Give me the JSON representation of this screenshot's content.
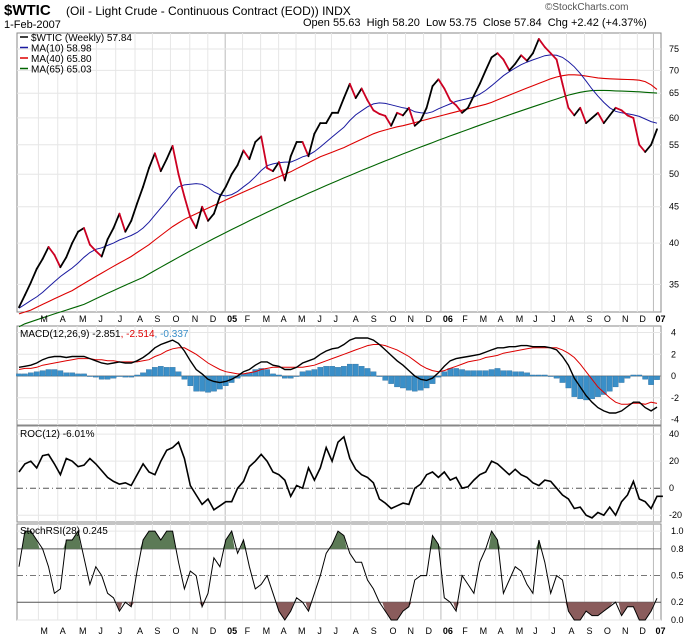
{
  "header": {
    "symbol": "$WTIC",
    "name": "(Oil - Light Crude - Continuous Contract (EOD)) INDX",
    "date": "1-Feb-2007",
    "open_label": "Open",
    "open": "55.63",
    "high_label": "High",
    "high": "58.20",
    "low_label": "Low",
    "low": "53.75",
    "close_label": "Close",
    "close": "57.84",
    "chg_label": "Chg",
    "chg": "+2.42 (+4.37%)",
    "watermark": "©StockCharts.com"
  },
  "colors": {
    "price": "#000000",
    "price_down": "#cc0022",
    "ma10": "#1a1aa0",
    "ma40": "#dd0000",
    "ma65": "#006400",
    "macd": "#000000",
    "signal": "#dd0000",
    "hist": "#3a8fc8",
    "roc": "#000000",
    "stoch": "#000000",
    "stoch_hi": "#5c7a56",
    "stoch_lo": "#8a5c5c"
  },
  "chart_data": {
    "type": "line",
    "x_labels": [
      "M",
      "A",
      "M",
      "J",
      "J",
      "A",
      "S",
      "O",
      "N",
      "D",
      "05",
      "F",
      "M",
      "A",
      "M",
      "J",
      "J",
      "A",
      "S",
      "O",
      "N",
      "D",
      "06",
      "F",
      "M",
      "A",
      "M",
      "J",
      "J",
      "A",
      "S",
      "O",
      "N",
      "D",
      "07"
    ],
    "price_panel": {
      "legend": [
        {
          "label": "$WTIC (Weekly) 57.84",
          "color_key": "price"
        },
        {
          "label": "MA(10) 58.98",
          "color_key": "ma10"
        },
        {
          "label": "MA(40) 65.80",
          "color_key": "ma40"
        },
        {
          "label": "MA(65) 65.03",
          "color_key": "ma65"
        }
      ],
      "yticks": [
        35,
        40,
        45,
        50,
        55,
        60,
        65,
        70,
        75
      ],
      "ylim": [
        32,
        79
      ],
      "scale": "log",
      "series": {
        "price": [
          32.5,
          33.8,
          35.2,
          36.8,
          38,
          39.5,
          38.5,
          37,
          38.2,
          40,
          41.5,
          42,
          39.8,
          39,
          38.3,
          40.5,
          42,
          44,
          41.5,
          43,
          45.5,
          48,
          51,
          53.5,
          50.5,
          52.5,
          54.8,
          50,
          46.5,
          43.5,
          42,
          45,
          43,
          44,
          46.5,
          48,
          50,
          51.5,
          54,
          52.5,
          55.5,
          56.5,
          51,
          50.5,
          52,
          49,
          53,
          55.5,
          55.5,
          53,
          57,
          59,
          59,
          61,
          61,
          64,
          67,
          64,
          66,
          63.5,
          61.5,
          60.8,
          60.4,
          58.5,
          61,
          60.5,
          62,
          58.5,
          59.5,
          62,
          66.5,
          68,
          66,
          63.5,
          62.5,
          61,
          62,
          64.5,
          67,
          70,
          73,
          74,
          72.5,
          70,
          71.5,
          73.5,
          72.2,
          74,
          77.5,
          75.5,
          74,
          72.5,
          67,
          62,
          60.5,
          62,
          59,
          60,
          61,
          59,
          60.5,
          62,
          61.5,
          60.5,
          60,
          55,
          53.75,
          55,
          57.84
        ],
        "ma10": [
          32.4,
          32.8,
          33.2,
          33.6,
          34.1,
          34.7,
          35.3,
          35.9,
          36.4,
          36.9,
          37.5,
          38.2,
          38.8,
          39.2,
          39.4,
          39.7,
          40,
          40.4,
          40.7,
          41,
          41.4,
          42,
          42.8,
          43.8,
          44.8,
          45.8,
          47,
          48,
          48.3,
          48.4,
          48.5,
          48.4,
          47.9,
          47.2,
          46.8,
          46.6,
          46.8,
          47.3,
          48,
          48.7,
          49.6,
          50.6,
          51.4,
          51.7,
          51.9,
          52,
          52,
          52.4,
          52.9,
          53.2,
          53.8,
          54.6,
          55.5,
          56.4,
          57.3,
          58.2,
          59.5,
          60.6,
          61.4,
          62.2,
          62.8,
          63,
          62.9,
          62.6,
          62.3,
          62,
          61.8,
          61.2,
          61,
          60.9,
          61.2,
          61.8,
          62.3,
          62.8,
          63.3,
          63.6,
          63.9,
          64.2,
          64.8,
          65.6,
          66.6,
          67.7,
          68.8,
          69.7,
          70.5,
          71.3,
          71.9,
          72.4,
          72.9,
          73.4,
          73.6,
          73.5,
          73,
          72,
          70.8,
          69.3,
          67.6,
          65.9,
          64.4,
          63.1,
          62,
          61.3,
          61,
          60.8,
          60.6,
          60.3,
          59.8,
          59.3,
          58.98
        ],
        "ma40": [
          31.8,
          32,
          32.2,
          32.5,
          32.8,
          33.1,
          33.4,
          33.7,
          34,
          34.3,
          34.7,
          35.1,
          35.5,
          35.9,
          36.3,
          36.7,
          37.1,
          37.5,
          37.9,
          38.3,
          38.8,
          39.3,
          39.8,
          40.4,
          41,
          41.6,
          42.2,
          42.7,
          43.2,
          43.6,
          44,
          44.4,
          44.8,
          45.2,
          45.6,
          46,
          46.4,
          46.8,
          47.2,
          47.6,
          48,
          48.4,
          48.8,
          49.2,
          49.6,
          50,
          50.4,
          50.9,
          51.4,
          51.9,
          52.4,
          52.9,
          53.3,
          53.7,
          54.1,
          54.5,
          55,
          55.5,
          56,
          56.5,
          57,
          57.4,
          57.7,
          58,
          58.3,
          58.5,
          58.8,
          59.1,
          59.4,
          59.7,
          60,
          60.3,
          60.6,
          60.9,
          61.2,
          61.5,
          61.8,
          62.1,
          62.4,
          62.7,
          63.1,
          63.6,
          64.1,
          64.6,
          65.1,
          65.6,
          66.1,
          66.6,
          67.1,
          67.6,
          68.1,
          68.5,
          68.8,
          69,
          69,
          68.9,
          68.7,
          68.5,
          68.3,
          68.2,
          68.1,
          68.05,
          68,
          67.95,
          67.9,
          67.8,
          67.5,
          66.8,
          65.8
        ],
        "ma65": [
          30.5,
          30.8,
          31,
          31.2,
          31.4,
          31.6,
          31.8,
          32,
          32.2,
          32.4,
          32.6,
          32.8,
          33.1,
          33.4,
          33.7,
          34,
          34.3,
          34.6,
          34.9,
          35.2,
          35.5,
          35.8,
          36.2,
          36.6,
          37,
          37.4,
          37.8,
          38.2,
          38.6,
          39,
          39.4,
          39.8,
          40.2,
          40.6,
          41,
          41.4,
          41.8,
          42.2,
          42.6,
          43,
          43.4,
          43.8,
          44.2,
          44.6,
          45,
          45.4,
          45.8,
          46.2,
          46.6,
          47,
          47.4,
          47.8,
          48.2,
          48.6,
          49,
          49.4,
          49.8,
          50.2,
          50.6,
          51,
          51.4,
          51.8,
          52.2,
          52.6,
          53,
          53.4,
          53.8,
          54.2,
          54.6,
          55,
          55.4,
          55.8,
          56.2,
          56.6,
          57,
          57.4,
          57.8,
          58.2,
          58.6,
          59,
          59.4,
          59.8,
          60.2,
          60.6,
          61,
          61.4,
          61.8,
          62.2,
          62.6,
          63,
          63.4,
          63.8,
          64.2,
          64.6,
          64.9,
          65.2,
          65.4,
          65.55,
          65.6,
          65.6,
          65.55,
          65.5,
          65.45,
          65.4,
          65.35,
          65.3,
          65.2,
          65.1,
          65.03
        ]
      }
    },
    "macd_panel": {
      "label_text": "MACD(12,26,9)",
      "values": [
        "-2.851",
        "-2.514",
        "-0.337"
      ],
      "value_colors": [
        "macd",
        "signal",
        "hist"
      ],
      "yticks": [
        4,
        2,
        0,
        -2,
        -4
      ],
      "ylim": [
        -4.5,
        4.6
      ],
      "macd": [
        0.8,
        0.9,
        1,
        1.2,
        1.5,
        1.7,
        1.8,
        1.8,
        1.7,
        1.8,
        1.8,
        1.8,
        1.6,
        1.4,
        1.2,
        1.1,
        1.2,
        1.3,
        1.2,
        1.2,
        1.4,
        1.7,
        2.1,
        2.6,
        2.9,
        3.1,
        3.3,
        3,
        2.3,
        1.4,
        0.6,
        0.2,
        -0.3,
        -0.5,
        -0.6,
        -0.5,
        -0.3,
        0,
        0.4,
        0.6,
        1,
        1.3,
        1.3,
        1,
        0.9,
        0.6,
        0.6,
        0.8,
        1.2,
        1.4,
        1.6,
        2,
        2.3,
        2.5,
        2.6,
        2.9,
        3.3,
        3.5,
        3.5,
        3.5,
        3.3,
        2.9,
        2.4,
        1.9,
        1.4,
        1,
        0.5,
        0,
        -0.3,
        -0.4,
        -0.2,
        0.3,
        0.9,
        1.4,
        1.6,
        1.7,
        1.8,
        1.9,
        2,
        2.2,
        2.4,
        2.6,
        2.6,
        2.7,
        2.7,
        2.8,
        2.8,
        2.7,
        2.7,
        2.7,
        2.6,
        2.4,
        1.8,
        1,
        -0.2,
        -1,
        -1.8,
        -2.4,
        -2.9,
        -3.2,
        -3.4,
        -3.4,
        -3.2,
        -2.8,
        -2.4,
        -2.4,
        -2.9,
        -3.2,
        -2.851
      ],
      "signal": [
        0.6,
        0.7,
        0.7,
        0.8,
        1,
        1.1,
        1.2,
        1.3,
        1.4,
        1.5,
        1.6,
        1.6,
        1.6,
        1.5,
        1.5,
        1.4,
        1.4,
        1.3,
        1.3,
        1.3,
        1.3,
        1.4,
        1.5,
        1.8,
        2,
        2.3,
        2.5,
        2.6,
        2.6,
        2.3,
        2,
        1.6,
        1.2,
        0.9,
        0.6,
        0.4,
        0.3,
        0.2,
        0.2,
        0.3,
        0.4,
        0.6,
        0.7,
        0.8,
        0.8,
        0.8,
        0.8,
        0.8,
        0.8,
        0.9,
        1,
        1.2,
        1.4,
        1.6,
        1.8,
        2,
        2.2,
        2.4,
        2.6,
        2.8,
        2.9,
        2.9,
        2.8,
        2.6,
        2.4,
        2.1,
        1.8,
        1.4,
        1,
        0.7,
        0.5,
        0.4,
        0.5,
        0.7,
        0.9,
        1.1,
        1.3,
        1.4,
        1.5,
        1.7,
        1.8,
        1.9,
        2.1,
        2.2,
        2.3,
        2.4,
        2.5,
        2.6,
        2.6,
        2.6,
        2.6,
        2.6,
        2.4,
        2.1,
        1.7,
        1.1,
        0.4,
        -0.3,
        -1,
        -1.5,
        -2,
        -2.4,
        -2.6,
        -2.6,
        -2.5,
        -2.5,
        -2.6,
        -2.4,
        -2.514
      ]
    },
    "roc_panel": {
      "label_text": "ROC(12)",
      "value": "-6.01%",
      "yticks": [
        40,
        20,
        0,
        -20
      ],
      "ylim": [
        -25,
        46
      ],
      "dashed_at": 0,
      "values": [
        12,
        18,
        20,
        15,
        24,
        25,
        18,
        10,
        22,
        20,
        16,
        17,
        22,
        18,
        13,
        8,
        5,
        3,
        4,
        2,
        10,
        18,
        12,
        10,
        20,
        28,
        30,
        34,
        22,
        2,
        -5,
        -12,
        -8,
        -16,
        -13,
        -10,
        -10,
        0,
        5,
        16,
        20,
        25,
        20,
        12,
        10,
        6,
        -6,
        2,
        0,
        15,
        6,
        15,
        30,
        20,
        34,
        38,
        22,
        14,
        10,
        8,
        4,
        -8,
        -11,
        -15,
        -13,
        -11,
        -12,
        0,
        3,
        10,
        12,
        8,
        12,
        6,
        8,
        0,
        1,
        6,
        10,
        12,
        20,
        18,
        14,
        10,
        14,
        10,
        8,
        4,
        2,
        6,
        5,
        0,
        -5,
        -8,
        -15,
        -14,
        -20,
        -22,
        -18,
        -20,
        -14,
        -20,
        -10,
        -5,
        5,
        -8,
        -10,
        -15,
        -6,
        -6.01
      ]
    },
    "stoch_panel": {
      "label_text": "StochRSI(28)",
      "value": "0.245",
      "yticks": [
        "1.0",
        "0.8",
        "0.5",
        "0.2",
        "0.0"
      ],
      "ylim": [
        0,
        1.08
      ],
      "values": [
        0.6,
        1,
        1,
        0.9,
        0.8,
        0.6,
        0.3,
        0.35,
        0.9,
        0.9,
        1,
        0.7,
        0.4,
        0.6,
        0.5,
        0.3,
        0.25,
        0.1,
        0.2,
        0.15,
        0.55,
        0.9,
        1,
        1,
        0.9,
        1,
        1,
        0.65,
        0.35,
        0.55,
        0.5,
        0.15,
        0.3,
        0.7,
        0.6,
        0.9,
        1,
        0.75,
        0.9,
        0.6,
        0.35,
        0.4,
        0.5,
        0.3,
        0.1,
        0,
        0.1,
        0.25,
        0.2,
        0.1,
        0.3,
        0.5,
        0.75,
        0.85,
        1,
        0.95,
        0.75,
        0.65,
        0.65,
        0.45,
        0.35,
        0.2,
        0.1,
        0,
        0,
        0.1,
        0.15,
        0.45,
        0.5,
        0.5,
        0.95,
        0.85,
        0.25,
        0.2,
        0.1,
        0.5,
        0.4,
        0.3,
        0.65,
        0.8,
        1,
        0.9,
        0.3,
        0.45,
        0.6,
        0.55,
        0.4,
        0.3,
        0.9,
        0.65,
        0.3,
        0.5,
        0.45,
        0.1,
        0,
        0,
        0.1,
        0.05,
        0.05,
        0.1,
        0.15,
        0.2,
        0.05,
        0.15,
        0.15,
        0,
        0,
        0.1,
        0.245
      ]
    }
  }
}
